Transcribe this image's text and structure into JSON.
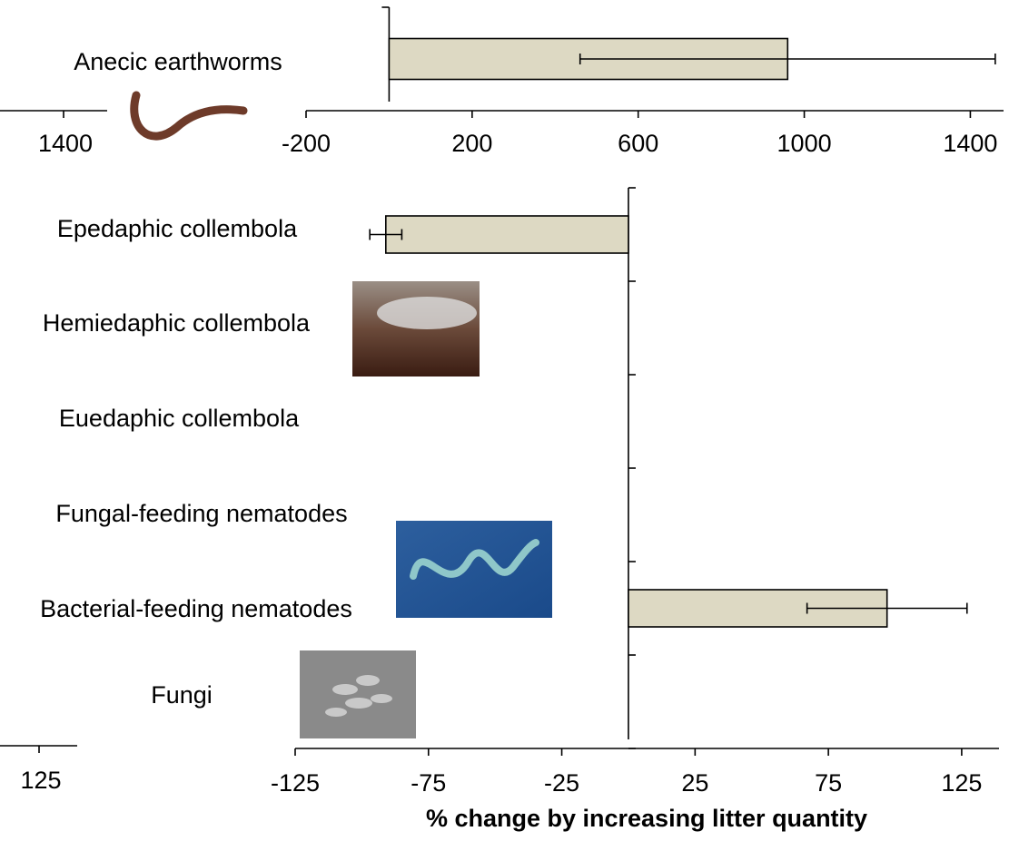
{
  "chart_data": [
    {
      "type": "bar",
      "orientation": "horizontal",
      "categories": [
        "Anecic earthworms"
      ],
      "values": [
        960
      ],
      "errors": [
        500
      ],
      "color": "#ddd9c3",
      "xlim": [
        -200,
        1480
      ],
      "xticks": [
        -200,
        200,
        600,
        1000,
        1400
      ]
    },
    {
      "type": "bar",
      "orientation": "horizontal",
      "categories": [
        "Epedaphic collembola",
        "Hemiedaphic collembola",
        "Euedaphic collembola",
        "Fungal-feeding nematodes",
        "Bacterial-feeding nematodes",
        "Fungi"
      ],
      "values": [
        -91,
        null,
        null,
        null,
        97,
        null
      ],
      "errors": [
        6,
        null,
        null,
        null,
        30,
        null
      ],
      "color": "#ddd9c3",
      "xlim": [
        -125,
        139
      ],
      "xticks": [
        -125,
        -75,
        -25,
        25,
        75,
        125
      ],
      "xlabel": "% change by increasing litter quantity"
    }
  ],
  "edge_labels": [
    "1400",
    "125"
  ]
}
